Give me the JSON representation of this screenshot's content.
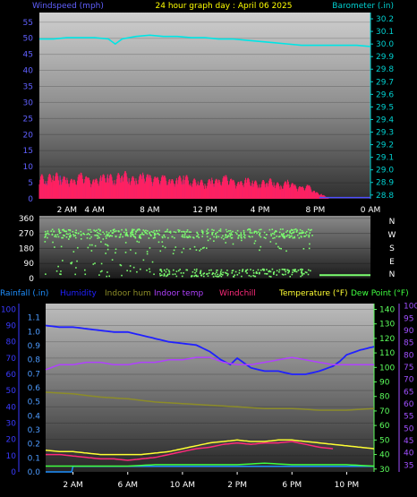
{
  "chart_data": [
    {
      "type": "line",
      "title": "24 hour graph day : April 06 2025",
      "left_axis_label": "Windspeed (mph)",
      "right_axis_label": "Barometer (.in)",
      "x_tick_labels": [
        "2 AM",
        "4 AM",
        "8 AM",
        "12 PM",
        "4 PM",
        "8 PM",
        "0 AM"
      ],
      "x_tick_hours": [
        2,
        4,
        8,
        12,
        16,
        20,
        24
      ],
      "x_range": [
        0,
        24
      ],
      "left_ticks": [
        0,
        5,
        10,
        15,
        20,
        25,
        30,
        35,
        40,
        45,
        50,
        55
      ],
      "left_range": [
        0,
        58
      ],
      "right_ticks": [
        28.8,
        28.9,
        29.0,
        29.1,
        29.2,
        29.3,
        29.4,
        29.5,
        29.6,
        29.7,
        29.8,
        29.9,
        30.0,
        30.1,
        30.2
      ],
      "right_range": [
        28.77,
        30.25
      ],
      "colors": {
        "windspeed": "#5050ff",
        "gust": "#ff2060",
        "barometer": "#00e5e5",
        "left_axis": "#6060ff",
        "right_axis": "#00d0d0",
        "title": "#ffff00"
      },
      "series": [
        {
          "name": "Barometer",
          "axis": "right",
          "x": [
            0,
            1,
            2,
            3,
            4,
            5,
            5.5,
            6,
            7,
            8,
            9,
            10,
            11,
            12,
            13,
            14,
            15,
            16,
            17,
            18,
            19,
            20,
            21,
            22,
            23,
            24
          ],
          "values": [
            30.04,
            30.04,
            30.05,
            30.05,
            30.05,
            30.04,
            30.0,
            30.04,
            30.06,
            30.07,
            30.06,
            30.06,
            30.05,
            30.05,
            30.04,
            30.04,
            30.03,
            30.02,
            30.01,
            30.0,
            29.99,
            29.99,
            29.99,
            29.99,
            29.99,
            29.98
          ]
        },
        {
          "name": "Windspeed",
          "axis": "left",
          "x": [
            0,
            0.5,
            1,
            1.5,
            2,
            2.5,
            3,
            3.5,
            4,
            4.5,
            5,
            5.5,
            6,
            6.5,
            7,
            7.5,
            8,
            8.5,
            9,
            9.5,
            10,
            10.5,
            11,
            11.5,
            12,
            12.5,
            13,
            13.5,
            14,
            14.5,
            15,
            15.5,
            16,
            16.5,
            17,
            17.5,
            18,
            18.5,
            19,
            19.5,
            20,
            20.5,
            21,
            22,
            23,
            24
          ],
          "values": [
            6,
            7,
            5,
            8,
            6,
            5,
            7,
            6,
            5,
            7,
            8,
            6,
            9,
            7,
            6,
            8,
            7,
            6,
            7,
            5,
            6,
            7,
            5,
            6,
            4,
            6,
            5,
            7,
            5,
            4,
            6,
            5,
            4,
            6,
            5,
            3,
            5,
            4,
            3,
            4,
            2,
            1,
            0,
            0,
            0,
            0
          ]
        },
        {
          "name": "Wind gust",
          "axis": "left",
          "x": [
            0,
            0.5,
            1,
            1.5,
            2,
            2.5,
            3,
            3.5,
            4,
            4.5,
            5,
            5.5,
            6,
            6.5,
            7,
            7.5,
            8,
            8.5,
            9,
            9.5,
            10,
            10.5,
            11,
            11.5,
            12,
            12.5,
            13,
            13.5,
            14,
            14.5,
            15,
            15.5,
            16,
            16.5,
            17,
            17.5,
            18,
            18.5,
            19,
            19.5,
            20,
            20.5,
            21,
            22,
            23,
            24
          ],
          "values": [
            11,
            9,
            12,
            10,
            9,
            8,
            11,
            9,
            8,
            10,
            11,
            9,
            13,
            10,
            9,
            11,
            10,
            9,
            10,
            8,
            9,
            11,
            8,
            9,
            7,
            9,
            8,
            10,
            8,
            7,
            9,
            8,
            7,
            9,
            8,
            6,
            8,
            6,
            5,
            6,
            3,
            2,
            0,
            0,
            0,
            0
          ]
        }
      ]
    },
    {
      "type": "scatter",
      "title": "",
      "y_ticks": [
        0,
        90,
        180,
        270,
        360
      ],
      "y_range": [
        0,
        375
      ],
      "compass_labels": [
        "N",
        "W",
        "S",
        "E",
        "N"
      ],
      "colors": {
        "points": "#7cff70",
        "axis_text": "#ffffff"
      },
      "x_range": [
        0,
        24
      ],
      "clusters": [
        {
          "x_start": 0.3,
          "x_end": 19.8,
          "y_min": 245,
          "y_max": 300,
          "count": 420
        },
        {
          "x_start": 0.3,
          "x_end": 19.8,
          "y_min": 150,
          "y_max": 245,
          "count": 70
        },
        {
          "x_start": 8.5,
          "x_end": 19.6,
          "y_min": 15,
          "y_max": 60,
          "count": 190
        },
        {
          "x_start": 0.3,
          "x_end": 8.5,
          "y_min": 15,
          "y_max": 120,
          "count": 40
        }
      ],
      "calm_line": {
        "x_start": 20.3,
        "x_end": 24,
        "value": 20
      }
    },
    {
      "type": "line",
      "title": "",
      "legend": [
        "Rainfall (.in)",
        "Humidity",
        "Indoor hum",
        "Indoor temp",
        "Windchill",
        "Temperature (°F)",
        "Dew Point (°F)"
      ],
      "legend_colors": [
        "#1e8fff",
        "#2020ff",
        "#8c8c28",
        "#b040ff",
        "#ff2a7a",
        "#ffff33",
        "#40ff40"
      ],
      "x_tick_labels": [
        "2 AM",
        "6 AM",
        "10 AM",
        "2 PM",
        "6 PM",
        "10 PM"
      ],
      "x_tick_hours": [
        2,
        6,
        10,
        14,
        18,
        22
      ],
      "x_range": [
        0,
        24
      ],
      "rain_axis": {
        "ticks": [
          0,
          0.1,
          0.2,
          0.3,
          0.4,
          0.5,
          0.6,
          0.7,
          0.8,
          0.9,
          1.0,
          1.1
        ],
        "range": [
          0,
          1.2
        ],
        "color": "#4d9bff"
      },
      "percent_axis": {
        "ticks": [
          0,
          10,
          20,
          30,
          40,
          50,
          60,
          70,
          80,
          90,
          100
        ],
        "range": [
          0,
          103.5
        ],
        "color": "#3a3aff"
      },
      "temp_axis": {
        "ticks": [
          30,
          40,
          50,
          60,
          70,
          80,
          90,
          100,
          110,
          120,
          130,
          140
        ],
        "range": [
          28,
          144
        ],
        "color": "#5cff5c"
      },
      "indoor_temp_axis": {
        "ticks": [
          35,
          40,
          45,
          50,
          55,
          60,
          65,
          70,
          75,
          80,
          85,
          90,
          95,
          100
        ],
        "range": [
          32.2,
          101
        ],
        "color": "#a050ff"
      },
      "series": [
        {
          "name": "Rainfall (.in)",
          "axis": "rain",
          "x": [
            0,
            1.9,
            2,
            24
          ],
          "values": [
            0.0,
            0.0,
            0.04,
            0.04
          ]
        },
        {
          "name": "Humidity",
          "axis": "percent",
          "x": [
            0,
            1,
            2,
            3,
            4,
            5,
            6,
            7,
            8,
            9,
            10,
            11,
            12,
            12.8,
            13.5,
            14,
            15,
            16,
            17,
            18,
            19,
            20,
            21,
            21.5,
            22,
            23,
            24
          ],
          "values": [
            90,
            89,
            89,
            88,
            87,
            86,
            86,
            84,
            82,
            80,
            79,
            78,
            74,
            69,
            66,
            70,
            64,
            62,
            62,
            60,
            60,
            62,
            65,
            68,
            72,
            75,
            77
          ]
        },
        {
          "name": "Indoor hum",
          "axis": "percent",
          "x": [
            0,
            2,
            4,
            6,
            8,
            10,
            12,
            14,
            16,
            18,
            20,
            22,
            24
          ],
          "values": [
            49,
            48,
            46,
            45,
            43,
            42,
            41,
            40,
            39,
            39,
            38,
            38,
            39
          ]
        },
        {
          "name": "Indoor temp",
          "axis": "indoor_temp",
          "x": [
            0,
            1,
            2,
            3,
            4,
            5,
            6,
            7,
            8,
            9,
            10,
            11,
            12,
            13,
            14,
            15,
            16,
            17,
            18,
            19,
            20,
            21,
            22,
            23,
            24
          ],
          "values": [
            74,
            76,
            76,
            77,
            77,
            76,
            76,
            77,
            77,
            78,
            78,
            79,
            79,
            77,
            76,
            76,
            77,
            78,
            79,
            78,
            77,
            76,
            76,
            76,
            76
          ]
        },
        {
          "name": "Windchill",
          "axis": "temp",
          "x": [
            0,
            1,
            2,
            3,
            4,
            5,
            6,
            7,
            8,
            9,
            10,
            11,
            12,
            13,
            14,
            15,
            16,
            17,
            18,
            19,
            20,
            21
          ],
          "values": [
            40,
            40,
            39,
            38,
            37,
            37,
            36,
            37,
            38,
            40,
            42,
            44,
            45,
            47,
            48,
            47,
            48,
            48,
            49,
            47,
            45,
            44
          ]
        },
        {
          "name": "Temperature (°F)",
          "axis": "temp",
          "x": [
            0,
            1,
            2,
            3,
            4,
            5,
            6,
            7,
            8,
            9,
            10,
            11,
            12,
            13,
            14,
            15,
            16,
            17,
            18,
            19,
            20,
            21,
            22,
            23,
            24
          ],
          "values": [
            43,
            42,
            42,
            41,
            40,
            40,
            40,
            40,
            41,
            42,
            44,
            46,
            48,
            49,
            50,
            49,
            49,
            50,
            50,
            49,
            48,
            47,
            46,
            45,
            44
          ]
        },
        {
          "name": "Dew Point (°F)",
          "axis": "temp",
          "x": [
            0,
            2,
            4,
            6,
            8,
            10,
            12,
            14,
            16,
            18,
            20,
            22,
            24
          ],
          "values": [
            32,
            32,
            32,
            32,
            33,
            33,
            33,
            33,
            34,
            33,
            33,
            33,
            32
          ]
        }
      ]
    }
  ]
}
